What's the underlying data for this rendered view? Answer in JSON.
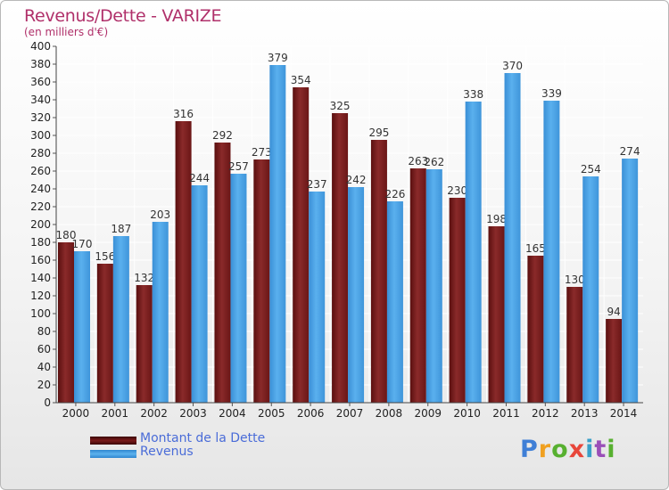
{
  "chart_data": {
    "type": "bar",
    "title": "Revenus/Dette - VARIZE",
    "subtitle": "(en milliers d'€)",
    "categories": [
      "2000",
      "2001",
      "2002",
      "2003",
      "2004",
      "2005",
      "2006",
      "2007",
      "2008",
      "2009",
      "2010",
      "2011",
      "2012",
      "2013",
      "2014"
    ],
    "series": [
      {
        "name": "Montant de la Dette",
        "color": "#7a1a1a",
        "values": [
          180,
          156,
          132,
          316,
          292,
          273,
          354,
          325,
          295,
          263,
          230,
          198,
          165,
          130,
          94
        ]
      },
      {
        "name": "Revenus",
        "color": "#4da6e8",
        "values": [
          170,
          187,
          203,
          244,
          257,
          379,
          237,
          242,
          226,
          262,
          338,
          370,
          339,
          254,
          274
        ]
      }
    ],
    "ylim": [
      0,
      400
    ],
    "ytick_step": 20,
    "grid": true,
    "legend_position": "bottom-left"
  },
  "logo": {
    "text": "Proxiti"
  }
}
